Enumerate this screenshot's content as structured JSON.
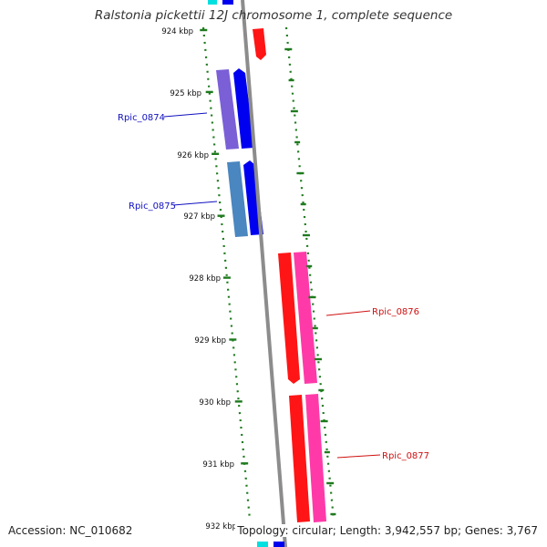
{
  "title": "Ralstonia pickettii 12J chromosome 1, complete sequence",
  "accession": "Accession: NC_010682",
  "summary": "Topology: circular; Length: 3,942,557 bp; Genes: 3,767",
  "colors": {
    "backbone": "#8c8c8c",
    "tick": "#1e7a1e",
    "plus_label": "#1010c0",
    "minus_label": "#d01010",
    "blue": "#0000f0",
    "purple": "#7a5fd6",
    "steel": "#4a86c0",
    "red": "#ff1515",
    "pink": "#ff3aa8",
    "cyan": "#00e0e0"
  },
  "ticks": [
    {
      "label": "924 kbp"
    },
    {
      "label": "925 kbp"
    },
    {
      "label": "926 kbp"
    },
    {
      "label": "927 kbp"
    },
    {
      "label": "928 kbp"
    },
    {
      "label": "929 kbp"
    },
    {
      "label": "930 kbp"
    },
    {
      "label": "931 kbp"
    },
    {
      "label": "932 kbp"
    }
  ],
  "gene_labels": [
    {
      "name": "Rpic_0874",
      "strand": "plus"
    },
    {
      "name": "Rpic_0875",
      "strand": "plus"
    },
    {
      "name": "Rpic_0876",
      "strand": "minus"
    },
    {
      "name": "Rpic_0877",
      "strand": "minus"
    }
  ]
}
